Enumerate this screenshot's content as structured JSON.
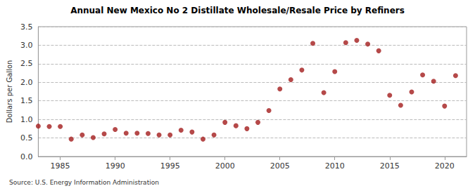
{
  "chart_data": {
    "type": "scatter",
    "title": "Annual New Mexico No 2 Distillate Wholesale/Resale Price by Refiners",
    "y_label": "Dollars per Gallon",
    "source": "Source: U.S. Energy Information Administration",
    "x": [
      1983,
      1984,
      1985,
      1986,
      1987,
      1988,
      1989,
      1990,
      1991,
      1992,
      1993,
      1994,
      1995,
      1996,
      1997,
      1998,
      1999,
      2000,
      2001,
      2002,
      2003,
      2004,
      2005,
      2006,
      2007,
      2008,
      2009,
      2010,
      2011,
      2012,
      2013,
      2014,
      2015,
      2016,
      2017,
      2018,
      2019,
      2020,
      2021
    ],
    "values": [
      0.82,
      0.81,
      0.81,
      0.47,
      0.58,
      0.51,
      0.61,
      0.73,
      0.63,
      0.63,
      0.62,
      0.58,
      0.58,
      0.71,
      0.66,
      0.47,
      0.58,
      0.92,
      0.83,
      0.75,
      0.92,
      1.24,
      1.82,
      2.07,
      2.33,
      3.05,
      1.72,
      2.29,
      3.07,
      3.13,
      3.03,
      2.85,
      1.65,
      1.38,
      1.74,
      2.2,
      2.03,
      1.36,
      2.18
    ],
    "color": "#a31c1c",
    "marker": "circle",
    "xlim": [
      1983,
      2022
    ],
    "xticks": [
      1985,
      1990,
      1995,
      2000,
      2005,
      2010,
      2015,
      2020
    ],
    "ylim": [
      0,
      3.5
    ],
    "yticks": [
      {
        "value": 0,
        "label": "0.0"
      },
      {
        "value": 0.5,
        "label": "0.5"
      },
      {
        "value": 1,
        "label": "1.0"
      },
      {
        "value": 1.5,
        "label": "1.5"
      },
      {
        "value": 2,
        "label": "2.0"
      },
      {
        "value": 2.5,
        "label": "2.5"
      },
      {
        "value": 3,
        "label": "3.0"
      },
      {
        "value": 3.5,
        "label": "3.5"
      }
    ],
    "grid": true
  }
}
